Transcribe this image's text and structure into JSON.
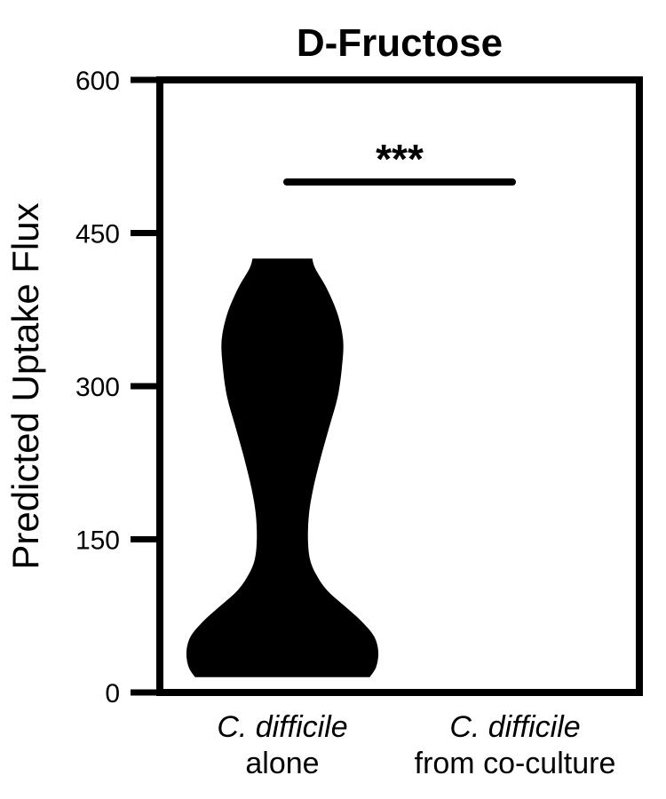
{
  "chart_data": {
    "type": "violin",
    "title": "D-Fructose",
    "ylabel": "Predicted Uptake Flux",
    "xlabel": "",
    "ylim": [
      0,
      600
    ],
    "yticks": [
      0,
      150,
      300,
      450,
      600
    ],
    "grid": false,
    "categories": [
      {
        "line1": "C. difficile",
        "line2": "alone"
      },
      {
        "line1": "C. difficile",
        "line2": "from co-culture"
      }
    ],
    "series": [
      {
        "category_index": 0,
        "min": 15,
        "max": 425,
        "color": "#000000",
        "density_profile": [
          {
            "y": 15,
            "halfwidth": 0.82
          },
          {
            "y": 25,
            "halfwidth": 0.88
          },
          {
            "y": 40,
            "halfwidth": 0.9
          },
          {
            "y": 55,
            "halfwidth": 0.86
          },
          {
            "y": 70,
            "halfwidth": 0.74
          },
          {
            "y": 85,
            "halfwidth": 0.58
          },
          {
            "y": 100,
            "halfwidth": 0.42
          },
          {
            "y": 115,
            "halfwidth": 0.32
          },
          {
            "y": 130,
            "halfwidth": 0.26
          },
          {
            "y": 150,
            "halfwidth": 0.24
          },
          {
            "y": 175,
            "halfwidth": 0.25
          },
          {
            "y": 200,
            "halfwidth": 0.29
          },
          {
            "y": 230,
            "halfwidth": 0.36
          },
          {
            "y": 260,
            "halfwidth": 0.44
          },
          {
            "y": 290,
            "halfwidth": 0.52
          },
          {
            "y": 320,
            "halfwidth": 0.56
          },
          {
            "y": 345,
            "halfwidth": 0.57
          },
          {
            "y": 370,
            "halfwidth": 0.52
          },
          {
            "y": 395,
            "halfwidth": 0.42
          },
          {
            "y": 415,
            "halfwidth": 0.31
          },
          {
            "y": 425,
            "halfwidth": 0.28
          }
        ]
      },
      {
        "category_index": 1,
        "min": 0,
        "max": 0,
        "color": "#000000",
        "density_profile": []
      }
    ],
    "annotations": [
      {
        "text": "***",
        "y": 500,
        "from_category": 0,
        "to_category": 1
      }
    ]
  }
}
